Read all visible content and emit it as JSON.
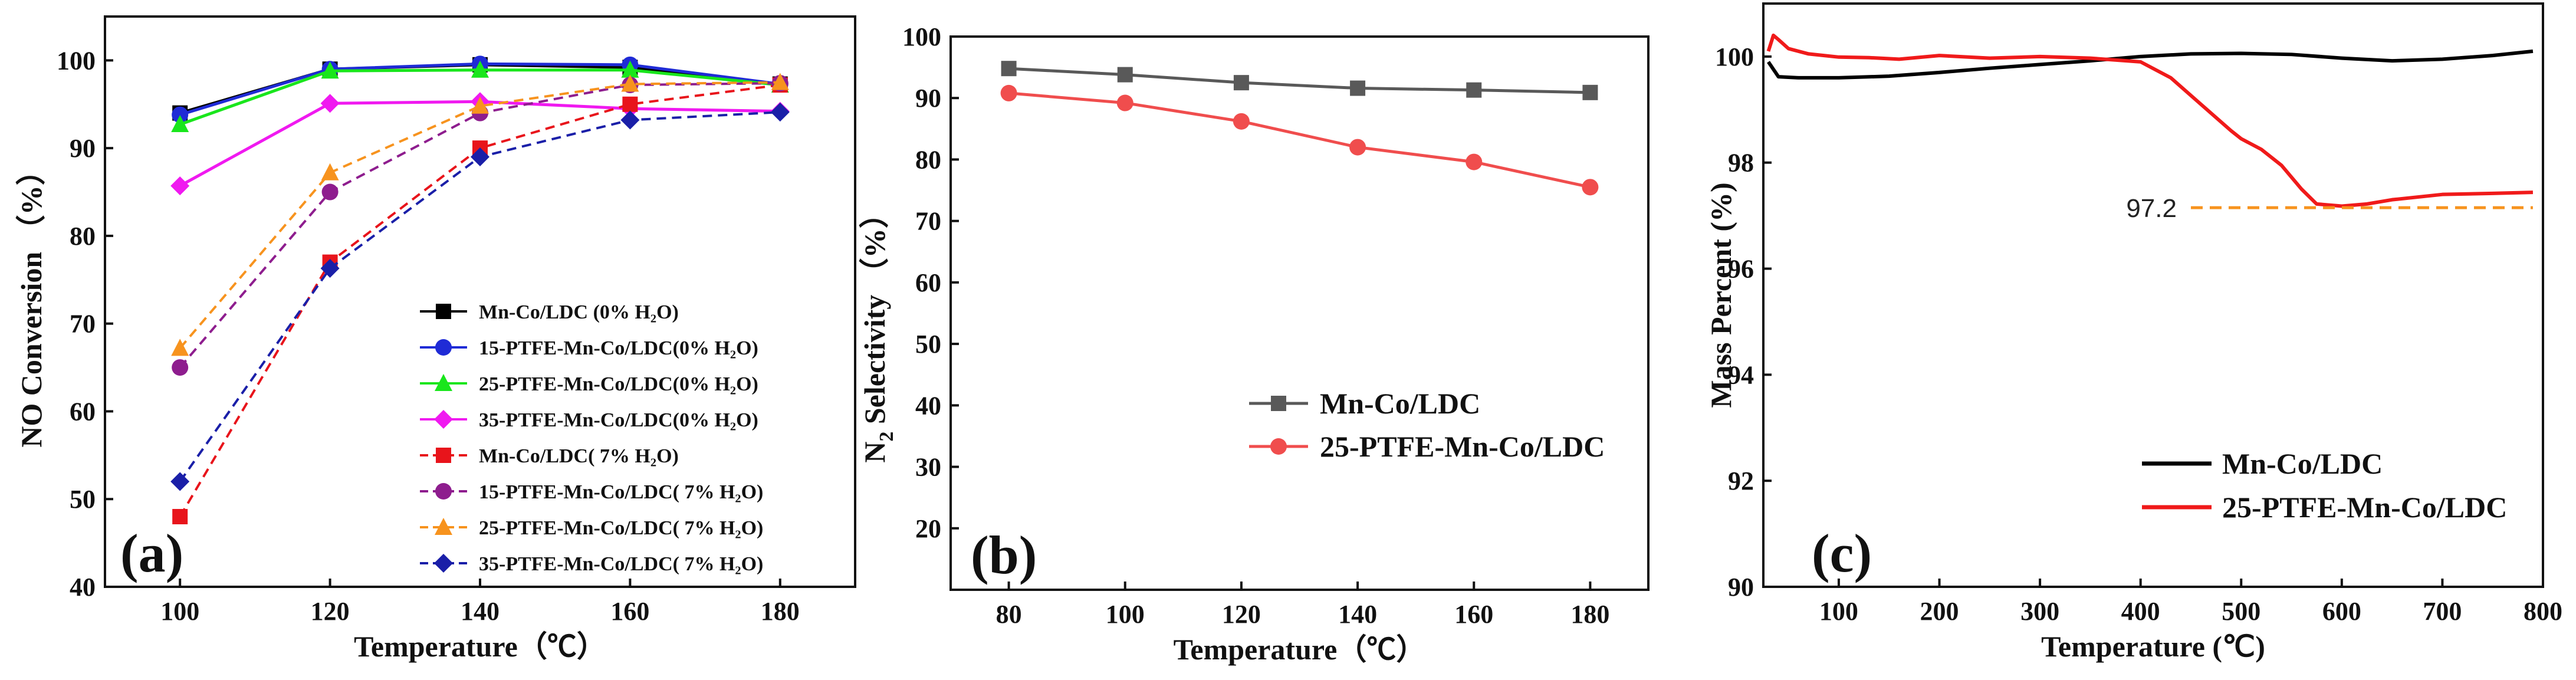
{
  "chart_data": [
    {
      "type": "line",
      "panel_label": "(a)",
      "xlabel": "Temperature（℃）",
      "ylabel": "NO Conversion （%）",
      "xlim": [
        90,
        190
      ],
      "ylim": [
        40,
        105
      ],
      "xticks": [
        100,
        120,
        140,
        160,
        180
      ],
      "yticks": [
        40,
        50,
        60,
        70,
        80,
        90,
        100
      ],
      "x": [
        100,
        120,
        140,
        160,
        180
      ],
      "legend_position": "bottom-right",
      "series": [
        {
          "name": "Mn-Co/LDC (0% H₂O)",
          "color": "#000000",
          "marker": "square",
          "dashed": false,
          "values": [
            94,
            99,
            99.5,
            99.2,
            97.3
          ]
        },
        {
          "name": "15-PTFE-Mn-Co/LDC(0% H₂O)",
          "color": "#1f2bd6",
          "marker": "circle",
          "dashed": false,
          "values": [
            93.8,
            99,
            99.6,
            99.5,
            97.3
          ]
        },
        {
          "name": "25-PTFE-Mn-Co/LDC(0% H₂O)",
          "color": "#19e61c",
          "marker": "triangle",
          "dashed": false,
          "values": [
            92.7,
            98.8,
            98.9,
            98.9,
            97.2
          ]
        },
        {
          "name": "35-PTFE-Mn-Co/LDC(0% H₂O)",
          "color": "#f019f0",
          "marker": "diamond",
          "dashed": false,
          "values": [
            85.7,
            95.1,
            95.3,
            94.5,
            94.2
          ]
        },
        {
          "name": "Mn-Co/LDC( 7% H₂O)",
          "color": "#e8141b",
          "marker": "square",
          "dashed": true,
          "values": [
            48,
            77,
            90,
            95,
            97.2
          ]
        },
        {
          "name": "15-PTFE-Mn-Co/LDC( 7% H₂O)",
          "color": "#8e1d8e",
          "marker": "circle",
          "dashed": true,
          "values": [
            65,
            85,
            94,
            97.2,
            97.4
          ]
        },
        {
          "name": "25-PTFE-Mn-Co/LDC( 7% H₂O)",
          "color": "#f7931e",
          "marker": "triangle",
          "dashed": true,
          "values": [
            67.2,
            87.2,
            94.8,
            97.3,
            97.5
          ]
        },
        {
          "name": "35-PTFE-Mn-Co/LDC( 7% H₂O)",
          "color": "#1a1fa8",
          "marker": "diamond",
          "dashed": true,
          "values": [
            52,
            76.3,
            89,
            93.2,
            94.1
          ]
        }
      ]
    },
    {
      "type": "line",
      "panel_label": "(b)",
      "xlabel": "Temperature（℃）",
      "ylabel_main": "N",
      "ylabel_sub": "2",
      "ylabel_rest": " Selectivity （%）",
      "xlim": [
        70,
        190
      ],
      "ylim": [
        10,
        100
      ],
      "xticks": [
        80,
        100,
        120,
        140,
        160,
        180
      ],
      "yticks": [
        20,
        30,
        40,
        50,
        60,
        70,
        80,
        90,
        100
      ],
      "x": [
        80,
        100,
        120,
        140,
        160,
        180
      ],
      "legend_position": "center-right",
      "series": [
        {
          "name": "Mn-Co/LDC",
          "color": "#595959",
          "marker": "square",
          "values": [
            94.8,
            93.8,
            92.5,
            91.6,
            91.3,
            90.9
          ]
        },
        {
          "name": "25-PTFE-Mn-Co/LDC",
          "color": "#f04d4d",
          "marker": "circle",
          "values": [
            90.8,
            89.2,
            86.2,
            82.0,
            79.6,
            75.5
          ]
        }
      ]
    },
    {
      "type": "line",
      "panel_label": "(c)",
      "xlabel": "Temperature (℃)",
      "ylabel": "Mass Percent (%)",
      "xlim": [
        25,
        800
      ],
      "ylim": [
        90,
        101
      ],
      "xticks": [
        100,
        200,
        300,
        400,
        500,
        600,
        700,
        800
      ],
      "yticks": [
        90,
        92,
        94,
        96,
        98,
        100
      ],
      "legend_position": "bottom-right",
      "annotation": {
        "text": "97.2",
        "value": 97.15,
        "x_start": 450,
        "x_end": 790,
        "color": "#f7931e"
      },
      "series": [
        {
          "name": "Mn-Co/LDC",
          "color": "#000000",
          "x": [
            30,
            40,
            60,
            100,
            150,
            200,
            250,
            300,
            350,
            400,
            450,
            500,
            550,
            600,
            650,
            700,
            750,
            790
          ],
          "values": [
            99.9,
            99.62,
            99.6,
            99.6,
            99.63,
            99.7,
            99.78,
            99.85,
            99.92,
            100.0,
            100.05,
            100.06,
            100.04,
            99.97,
            99.92,
            99.95,
            100.02,
            100.1
          ]
        },
        {
          "name": "25-PTFE-Mn-Co/LDC",
          "color": "#f01a1a",
          "x": [
            30,
            35,
            40,
            50,
            70,
            100,
            130,
            160,
            200,
            250,
            300,
            350,
            400,
            430,
            460,
            490,
            500,
            520,
            540,
            560,
            575,
            600,
            625,
            650,
            700,
            750,
            790
          ],
          "values": [
            100.1,
            100.4,
            100.32,
            100.15,
            100.05,
            99.99,
            99.98,
            99.95,
            100.02,
            99.97,
            100.0,
            99.97,
            99.9,
            99.6,
            99.1,
            98.6,
            98.45,
            98.25,
            97.95,
            97.5,
            97.22,
            97.18,
            97.22,
            97.3,
            97.4,
            97.42,
            97.44
          ]
        }
      ]
    }
  ]
}
